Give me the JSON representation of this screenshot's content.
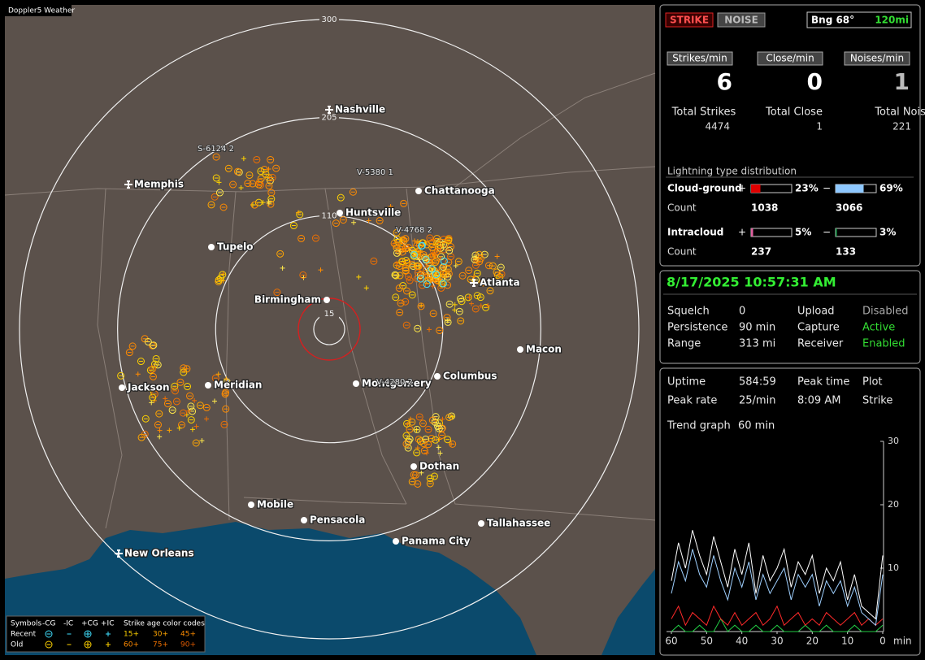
{
  "window_title": "Doppler5 Weather",
  "map": {
    "range_rings": [
      15,
      110,
      205,
      300
    ],
    "cities": [
      "Nashville",
      "Memphis",
      "Chattanooga",
      "Huntsville",
      "Tupelo",
      "Birmingham",
      "Atlanta",
      "Macon",
      "Jackson",
      "Meridian",
      "Montgomery",
      "Columbus",
      "Dothan",
      "Mobile",
      "Pensacola",
      "Tallahassee",
      "Panama City",
      "New Orleans"
    ],
    "storm_labels": [
      "S-6124 2",
      "V-5380 1",
      "V-4768 2",
      "V-4280 2"
    ],
    "legend": {
      "symbols_title": "Symbols",
      "symbol_types": [
        "-CG",
        "-IC",
        "+CG",
        "+IC"
      ],
      "rows": [
        "Recent",
        "Old"
      ],
      "age_title": "Strike age color codes",
      "age_codes": [
        "15+",
        "30+",
        "45+",
        "60+",
        "75+",
        "90+"
      ]
    }
  },
  "counters": {
    "mode_buttons": [
      "STRIKE",
      "NOISE"
    ],
    "bearing": "Bng 68°",
    "distance": "120mi",
    "rates": [
      {
        "label": "Strikes/min",
        "value": 6
      },
      {
        "label": "Close/min",
        "value": 0
      },
      {
        "label": "Noises/min",
        "value": 1
      }
    ],
    "totals": [
      {
        "label": "Total Strikes",
        "value": 4474
      },
      {
        "label": "Total Close",
        "value": 1
      },
      {
        "label": "Total Noises",
        "value": 221
      }
    ]
  },
  "distribution": {
    "title": "Lightning type distribution",
    "count_label": "Count",
    "types": [
      {
        "name": "Cloud-ground",
        "positive": {
          "sign": "+",
          "value": 23,
          "label": "23%",
          "count": 1038
        },
        "negative": {
          "sign": "−",
          "value": 69,
          "label": "69%",
          "count": 3066
        }
      },
      {
        "name": "Intracloud",
        "positive": {
          "sign": "+",
          "value": 5,
          "label": "5%",
          "count": 237
        },
        "negative": {
          "sign": "−",
          "value": 3,
          "label": "3%",
          "count": 133
        }
      }
    ]
  },
  "status": {
    "datetime": "8/17/2025 10:57:31 AM",
    "rows": [
      [
        {
          "label": "Squelch",
          "value": "0"
        },
        {
          "label": "Upload",
          "value": "Disabled"
        }
      ],
      [
        {
          "label": "Persistence",
          "value": "90 min"
        },
        {
          "label": "Capture",
          "value": "Active"
        }
      ],
      [
        {
          "label": "Range",
          "value": "313 mi"
        },
        {
          "label": "Receiver",
          "value": "Enabled"
        }
      ]
    ]
  },
  "stats": {
    "rows": [
      [
        {
          "label": "Uptime",
          "value": "584:59"
        },
        {
          "label": "Peak time",
          "value": "Plot"
        }
      ],
      [
        {
          "label": "Peak rate",
          "value": "25/min"
        },
        {
          "label": "8:09 AM",
          "value": "Strike"
        }
      ]
    ],
    "trend_label": "Trend graph",
    "trend_window": "60 min"
  },
  "trend_graph": {
    "type": "line",
    "x_unit": "min",
    "x": [
      60,
      58,
      56,
      54,
      52,
      50,
      48,
      46,
      44,
      42,
      40,
      38,
      36,
      34,
      32,
      30,
      28,
      26,
      24,
      22,
      20,
      18,
      16,
      14,
      12,
      10,
      8,
      6,
      4,
      2,
      0
    ],
    "xlim": [
      60,
      0
    ],
    "xticks": [
      60,
      50,
      40,
      30,
      20,
      10,
      0
    ],
    "ylim": [
      0,
      30
    ],
    "yticks": [
      10,
      20,
      30
    ],
    "series": [
      {
        "color": "#ffffff",
        "values": [
          8,
          14,
          10,
          16,
          12,
          9,
          15,
          11,
          7,
          13,
          9,
          14,
          6,
          12,
          8,
          10,
          13,
          7,
          11,
          9,
          12,
          6,
          10,
          8,
          11,
          5,
          9,
          4,
          3,
          2,
          12
        ]
      },
      {
        "color": "#9fd0ff",
        "values": [
          6,
          11,
          8,
          13,
          9,
          7,
          12,
          8,
          5,
          10,
          7,
          11,
          5,
          9,
          6,
          8,
          10,
          5,
          9,
          7,
          9,
          4,
          8,
          6,
          8,
          4,
          7,
          3,
          2,
          1,
          9
        ]
      },
      {
        "color": "#ff2a2a",
        "values": [
          2,
          4,
          1,
          3,
          2,
          1,
          4,
          2,
          1,
          3,
          1,
          2,
          3,
          1,
          2,
          4,
          1,
          2,
          3,
          1,
          2,
          1,
          3,
          2,
          1,
          2,
          3,
          1,
          2,
          1,
          2
        ]
      },
      {
        "color": "#22cc44",
        "values": [
          0,
          1,
          0,
          0,
          1,
          0,
          0,
          2,
          0,
          1,
          0,
          0,
          1,
          0,
          0,
          1,
          0,
          0,
          0,
          1,
          0,
          0,
          1,
          0,
          0,
          0,
          1,
          0,
          0,
          0,
          1
        ]
      }
    ]
  }
}
